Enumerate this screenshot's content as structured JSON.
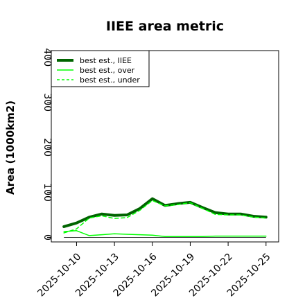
{
  "chart_data": {
    "type": "line",
    "title": "IIEE area metric",
    "xlabel": "",
    "ylabel": "Area (1000km2)",
    "ylim": [
      -10,
      415
    ],
    "xlim": [
      "2025-10-08",
      "2025-10-26"
    ],
    "grid": false,
    "legend_position": "top-left",
    "y_ticks": [
      0,
      100,
      200,
      300,
      400
    ],
    "x_ticks": [
      "2025-10-10",
      "2025-10-13",
      "2025-10-16",
      "2025-10-19",
      "2025-10-22",
      "2025-10-25"
    ],
    "baseline": 0,
    "x": [
      "2025-10-09",
      "2025-10-10",
      "2025-10-11",
      "2025-10-12",
      "2025-10-13",
      "2025-10-14",
      "2025-10-15",
      "2025-10-16",
      "2025-10-17",
      "2025-10-18",
      "2025-10-19",
      "2025-10-20",
      "2025-10-21",
      "2025-10-22",
      "2025-10-23",
      "2025-10-24",
      "2025-10-25"
    ],
    "series": [
      {
        "name": "best est., IIEE",
        "color": "#006400",
        "style": "solid-thick",
        "values": [
          24,
          32,
          45,
          52,
          49,
          50,
          64,
          86,
          71,
          75,
          78,
          66,
          55,
          52,
          52,
          47,
          45
        ]
      },
      {
        "name": "best est., over",
        "color": "#00ff00",
        "style": "solid",
        "values": [
          13,
          15,
          4,
          6,
          8,
          7,
          6,
          5,
          2,
          2,
          2,
          2,
          3,
          3,
          3,
          3,
          3
        ]
      },
      {
        "name": "best est., under",
        "color": "#00ff00",
        "style": "dashed",
        "values": [
          10,
          19,
          43,
          48,
          42,
          44,
          60,
          82,
          70,
          73,
          77,
          64,
          51,
          50,
          50,
          45,
          43
        ]
      }
    ]
  }
}
